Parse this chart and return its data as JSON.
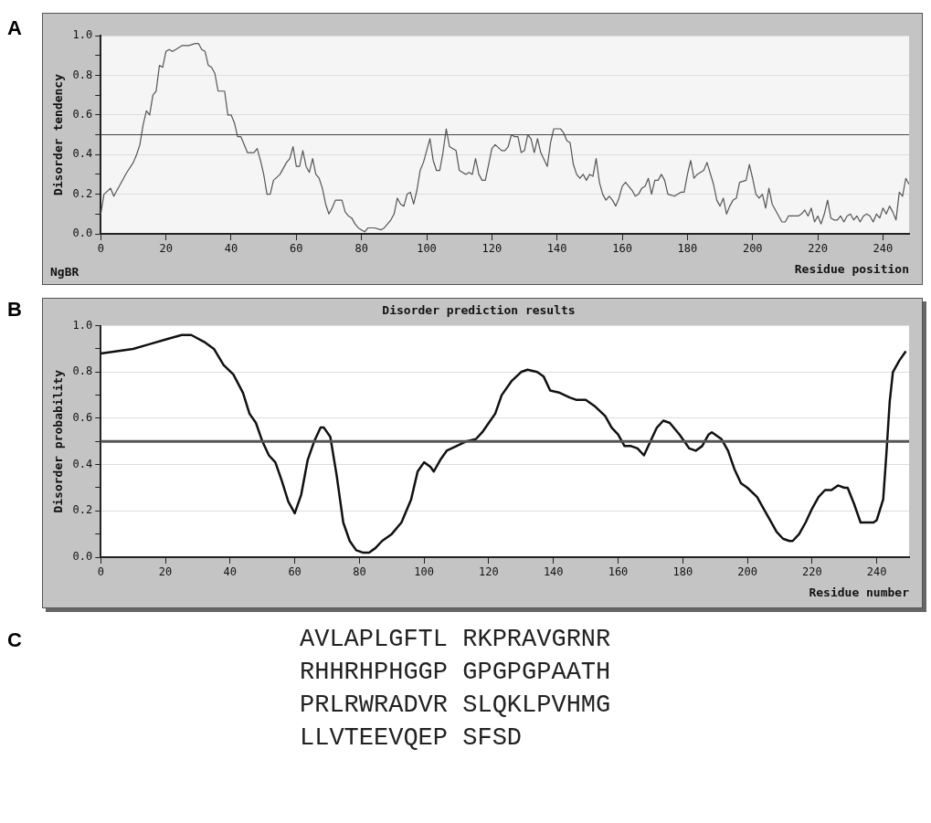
{
  "chart_data": [
    {
      "type": "line",
      "ylabel": "Disorder tendency",
      "xlabel": "Residue position",
      "annotations": [
        "A",
        "NgBR"
      ],
      "xlim": [
        0,
        248
      ],
      "xticks": [
        0,
        20,
        40,
        60,
        80,
        100,
        120,
        140,
        160,
        180,
        200,
        220,
        240
      ],
      "ylim": [
        0,
        1
      ],
      "yticks": [
        {
          "value": 0,
          "label": "0.0"
        },
        {
          "value": 0.1,
          "label": null
        },
        {
          "value": 0.2,
          "label": "0.2"
        },
        {
          "value": 0.3,
          "label": null
        },
        {
          "value": 0.4,
          "label": "0.4"
        },
        {
          "value": 0.5,
          "label": null
        },
        {
          "value": 0.6,
          "label": "0.6"
        },
        {
          "value": 0.7,
          "label": null
        },
        {
          "value": 0.8,
          "label": "0.8"
        },
        {
          "value": 0.9,
          "label": null
        },
        {
          "value": 1,
          "label": "1.0"
        }
      ],
      "grid": "y",
      "legend": false,
      "marker": "none",
      "line_style": "solid",
      "ref_lines": [
        {
          "axis": "y",
          "value": 0.5,
          "color": "#444444"
        }
      ],
      "series": [
        {
          "color": "#555555",
          "x": [
            0,
            1,
            3,
            4,
            6,
            8,
            10,
            11,
            12,
            13,
            14,
            15,
            16,
            17,
            18,
            19,
            20,
            21,
            22,
            23,
            25,
            27,
            29,
            30,
            31,
            32,
            33,
            34,
            35,
            36,
            38,
            39,
            40,
            41,
            42,
            43,
            44,
            45,
            47,
            48,
            49,
            50,
            51,
            52,
            53,
            55,
            56,
            57,
            58,
            59,
            60,
            61,
            62,
            63,
            64,
            65,
            66,
            67,
            68,
            69,
            70,
            71,
            72,
            74,
            75,
            76,
            77,
            78,
            79,
            80,
            81,
            82,
            84,
            86,
            87,
            89,
            90,
            91,
            92,
            93,
            94,
            95,
            96,
            97,
            98,
            99,
            100,
            101,
            102,
            103,
            104,
            105,
            106,
            107,
            108,
            109,
            110,
            111,
            112,
            113,
            114,
            115,
            116,
            117,
            118,
            119,
            120,
            121,
            123,
            124,
            125,
            126,
            127,
            128,
            129,
            130,
            131,
            132,
            133,
            134,
            135,
            137,
            138,
            139,
            141,
            142,
            143,
            144,
            145,
            146,
            147,
            148,
            149,
            150,
            151,
            152,
            153,
            154,
            155,
            156,
            157,
            158,
            159,
            160,
            161,
            163,
            164,
            165,
            166,
            167,
            168,
            169,
            170,
            171,
            172,
            173,
            174,
            176,
            178,
            179,
            180,
            181,
            182,
            183,
            185,
            186,
            188,
            189,
            190,
            191,
            192,
            193,
            194,
            195,
            196,
            198,
            199,
            200,
            201,
            202,
            203,
            204,
            205,
            206,
            207,
            208,
            209,
            210,
            211,
            212,
            214,
            215,
            216,
            217,
            218,
            219,
            220,
            221,
            222,
            223,
            224,
            225,
            226,
            227,
            228,
            229,
            230,
            231,
            232,
            233,
            234,
            235,
            236,
            237,
            238,
            239,
            240,
            241,
            242,
            243,
            244,
            245,
            246,
            247,
            248
          ],
          "values": [
            0.1,
            0.2,
            0.23,
            0.19,
            0.25,
            0.31,
            0.36,
            0.4,
            0.45,
            0.55,
            0.62,
            0.6,
            0.7,
            0.72,
            0.85,
            0.84,
            0.92,
            0.93,
            0.92,
            0.93,
            0.95,
            0.95,
            0.96,
            0.96,
            0.93,
            0.92,
            0.85,
            0.84,
            0.81,
            0.72,
            0.72,
            0.6,
            0.6,
            0.56,
            0.49,
            0.49,
            0.45,
            0.41,
            0.41,
            0.43,
            0.37,
            0.3,
            0.2,
            0.2,
            0.27,
            0.3,
            0.33,
            0.36,
            0.38,
            0.44,
            0.34,
            0.34,
            0.42,
            0.34,
            0.31,
            0.38,
            0.3,
            0.28,
            0.23,
            0.15,
            0.1,
            0.13,
            0.17,
            0.17,
            0.11,
            0.09,
            0.08,
            0.05,
            0.03,
            0.02,
            0.01,
            0.03,
            0.03,
            0.02,
            0.03,
            0.07,
            0.1,
            0.18,
            0.15,
            0.14,
            0.2,
            0.21,
            0.15,
            0.22,
            0.32,
            0.36,
            0.42,
            0.48,
            0.37,
            0.32,
            0.32,
            0.41,
            0.53,
            0.44,
            0.43,
            0.42,
            0.32,
            0.31,
            0.3,
            0.31,
            0.3,
            0.38,
            0.3,
            0.27,
            0.27,
            0.35,
            0.43,
            0.45,
            0.42,
            0.42,
            0.44,
            0.5,
            0.49,
            0.49,
            0.41,
            0.42,
            0.5,
            0.48,
            0.41,
            0.48,
            0.41,
            0.34,
            0.46,
            0.53,
            0.53,
            0.51,
            0.47,
            0.46,
            0.35,
            0.3,
            0.28,
            0.3,
            0.27,
            0.3,
            0.29,
            0.38,
            0.26,
            0.2,
            0.17,
            0.19,
            0.17,
            0.14,
            0.18,
            0.24,
            0.26,
            0.22,
            0.19,
            0.2,
            0.23,
            0.24,
            0.28,
            0.2,
            0.27,
            0.27,
            0.3,
            0.27,
            0.2,
            0.19,
            0.21,
            0.21,
            0.3,
            0.37,
            0.28,
            0.3,
            0.32,
            0.36,
            0.25,
            0.17,
            0.14,
            0.18,
            0.1,
            0.14,
            0.17,
            0.18,
            0.26,
            0.27,
            0.35,
            0.28,
            0.2,
            0.18,
            0.2,
            0.13,
            0.23,
            0.15,
            0.12,
            0.09,
            0.06,
            0.06,
            0.09,
            0.09,
            0.09,
            0.1,
            0.12,
            0.09,
            0.13,
            0.06,
            0.09,
            0.05,
            0.1,
            0.17,
            0.08,
            0.07,
            0.07,
            0.09,
            0.06,
            0.09,
            0.1,
            0.07,
            0.09,
            0.06,
            0.09,
            0.1,
            0.09,
            0.06,
            0.1,
            0.08,
            0.13,
            0.1,
            0.14,
            0.11,
            0.07,
            0.21,
            0.19,
            0.28,
            0.25
          ]
        }
      ]
    },
    {
      "type": "line",
      "title": "Disorder prediction results",
      "ylabel": "Disorder probability",
      "xlabel": "Residue number",
      "annotations": [
        "B"
      ],
      "xlim": [
        0,
        250
      ],
      "xticks": [
        0,
        20,
        40,
        60,
        80,
        100,
        120,
        140,
        160,
        180,
        200,
        220,
        240
      ],
      "ylim": [
        0,
        1
      ],
      "yticks": [
        {
          "value": 0,
          "label": "0.0"
        },
        {
          "value": 0.1,
          "label": null
        },
        {
          "value": 0.2,
          "label": "0.2"
        },
        {
          "value": 0.3,
          "label": null
        },
        {
          "value": 0.4,
          "label": "0.4"
        },
        {
          "value": 0.5,
          "label": null
        },
        {
          "value": 0.6,
          "label": "0.6"
        },
        {
          "value": 0.7,
          "label": null
        },
        {
          "value": 0.8,
          "label": "0.8"
        },
        {
          "value": 0.9,
          "label": null
        },
        {
          "value": 1,
          "label": "1.0"
        }
      ],
      "grid": "y",
      "legend": false,
      "marker": "none",
      "line_style": "solid",
      "ref_lines": [
        {
          "axis": "y",
          "value": 0.5,
          "color": "#555555"
        }
      ],
      "series": [
        {
          "color": "#111111",
          "x": [
            0,
            5,
            10,
            15,
            20,
            25,
            28,
            32,
            35,
            38,
            41,
            44,
            46,
            48,
            50,
            52,
            54,
            56,
            58,
            60,
            62,
            64,
            66,
            68,
            69,
            71,
            73,
            75,
            77,
            79,
            81,
            83,
            85,
            87,
            90,
            93,
            96,
            98,
            100,
            102,
            103,
            105,
            107,
            110,
            113,
            116,
            118,
            120,
            122,
            124,
            127,
            130,
            132,
            135,
            137,
            139,
            142,
            145,
            147,
            150,
            153,
            156,
            158,
            160,
            162,
            164,
            166,
            168,
            170,
            172,
            174,
            176,
            179,
            181,
            182,
            184,
            186,
            188,
            189,
            192,
            194,
            196,
            198,
            200,
            203,
            205,
            207,
            209,
            211,
            213,
            214,
            216,
            218,
            220,
            222,
            224,
            226,
            228,
            230,
            231,
            233,
            235,
            237,
            239,
            240,
            242,
            243,
            244,
            245,
            247,
            249
          ],
          "values": [
            0.88,
            0.89,
            0.9,
            0.92,
            0.94,
            0.96,
            0.96,
            0.93,
            0.9,
            0.83,
            0.79,
            0.71,
            0.62,
            0.58,
            0.5,
            0.44,
            0.41,
            0.33,
            0.24,
            0.19,
            0.27,
            0.42,
            0.5,
            0.56,
            0.56,
            0.52,
            0.35,
            0.15,
            0.07,
            0.03,
            0.02,
            0.02,
            0.04,
            0.07,
            0.1,
            0.15,
            0.25,
            0.37,
            0.41,
            0.39,
            0.37,
            0.42,
            0.46,
            0.48,
            0.5,
            0.51,
            0.54,
            0.58,
            0.62,
            0.7,
            0.76,
            0.8,
            0.81,
            0.8,
            0.78,
            0.72,
            0.71,
            0.69,
            0.68,
            0.68,
            0.65,
            0.61,
            0.56,
            0.53,
            0.48,
            0.48,
            0.47,
            0.44,
            0.5,
            0.56,
            0.59,
            0.58,
            0.53,
            0.49,
            0.47,
            0.46,
            0.48,
            0.53,
            0.54,
            0.51,
            0.46,
            0.38,
            0.32,
            0.3,
            0.26,
            0.21,
            0.16,
            0.11,
            0.08,
            0.07,
            0.07,
            0.1,
            0.15,
            0.21,
            0.26,
            0.29,
            0.29,
            0.31,
            0.3,
            0.3,
            0.23,
            0.15,
            0.15,
            0.15,
            0.16,
            0.25,
            0.45,
            0.67,
            0.8,
            0.85,
            0.89
          ]
        }
      ]
    },
    {
      "type": "other",
      "annotations": [
        "C",
        "AVLAPLGFTL RKPRAVGRNR",
        "RHHRHPHGGP GPGPGPAATH",
        "PRLRWRADVR SLQKLPVHMG",
        "LLVTEEVQEP SFSD"
      ]
    }
  ]
}
